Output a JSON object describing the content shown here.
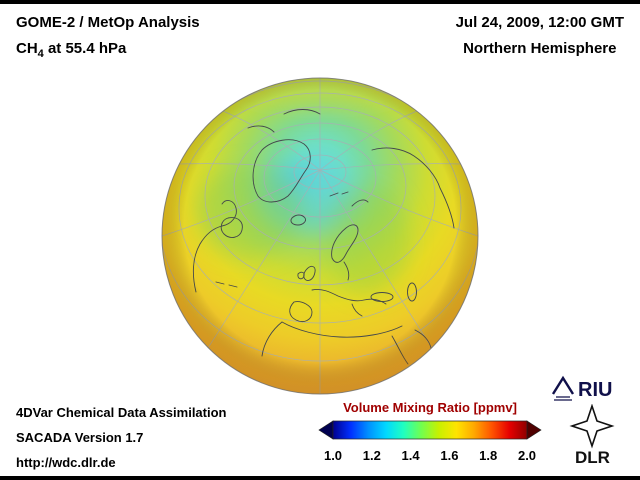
{
  "header": {
    "title": "GOME-2 / MetOp Analysis",
    "species_prefix": "CH",
    "species_sub": "4",
    "species_suffix": " at 55.4 hPa",
    "datetime": "Jul 24, 2009, 12:00 GMT",
    "region": "Northern Hemisphere"
  },
  "footer": {
    "line1": "4DVar Chemical Data Assimilation",
    "line2": "SACADA Version 1.7",
    "line3": "http://wdc.dlr.de"
  },
  "colorbar": {
    "title": "Volume Mixing Ratio [ppmv]",
    "title_color": "#a00000",
    "ticks": [
      "1.0",
      "1.2",
      "1.4",
      "1.6",
      "1.8",
      "2.0"
    ],
    "gradient": [
      "#00008f",
      "#0030ff",
      "#0090ff",
      "#00d8ff",
      "#20ffc0",
      "#70ff50",
      "#c8f000",
      "#ffe400",
      "#ffa800",
      "#ff5400",
      "#e60000",
      "#8f0000"
    ],
    "arrow_left": "#000050",
    "arrow_right": "#500000"
  },
  "logos": {
    "riu": "RIU",
    "dlr": "DLR"
  },
  "chart_data": {
    "type": "heatmap",
    "title": "GOME-2 / MetOp Analysis — CH4 at 55.4 hPa",
    "projection": "orthographic globe, Northern Hemisphere view",
    "timestamp": "Jul 24, 2009, 12:00 GMT",
    "variable": "CH4 volume mixing ratio",
    "units": "ppmv",
    "colorbar_range": [
      1.0,
      2.0
    ],
    "colorbar_ticks": [
      1.0,
      1.2,
      1.4,
      1.6,
      1.8,
      2.0
    ],
    "regions": [
      {
        "area": "polar cap / Arctic ocean",
        "approx_value_ppmv": 1.35,
        "color": "cyan"
      },
      {
        "area": "60-75N (N Europe, Siberia, N Canada)",
        "approx_value_ppmv": 1.45,
        "color": "green"
      },
      {
        "area": "45-60N mid-latitudes",
        "approx_value_ppmv": 1.55,
        "color": "yellow-green"
      },
      {
        "area": "subtropics and limb (N Africa, S Asia)",
        "approx_value_ppmv": 1.65,
        "color": "yellow-orange"
      }
    ],
    "grid": "graticule on",
    "legend_position": "bottom center-right colorbar with arrow ends"
  }
}
